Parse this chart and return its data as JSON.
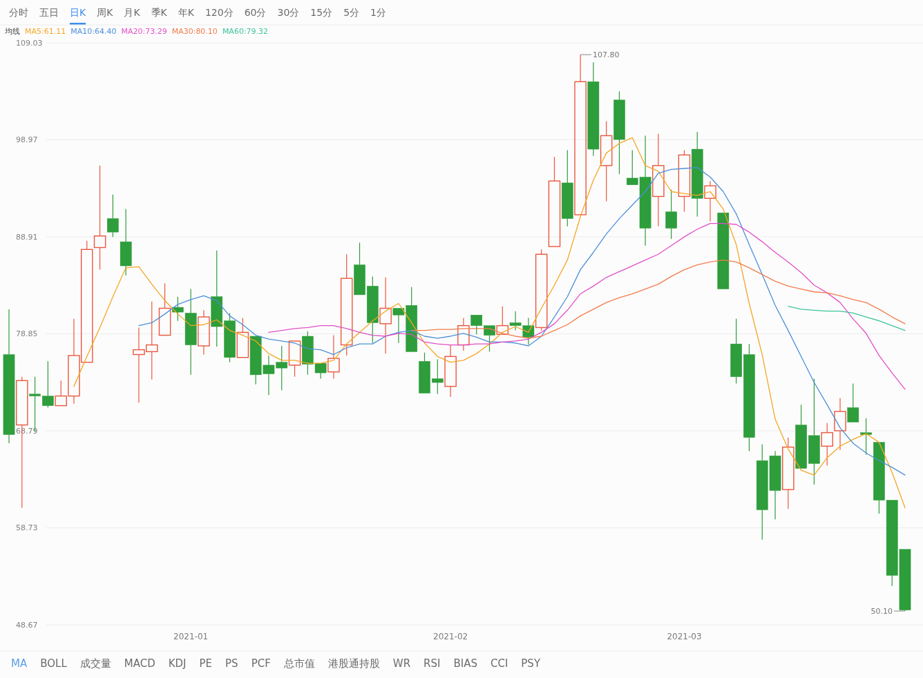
{
  "chart_data": [
    {
      "type": "other",
      "categories": [
        "分时",
        "五日",
        "日K",
        "周K",
        "月K",
        "季K",
        "年K",
        "120分",
        "60分",
        "30分",
        "15分",
        "5分",
        "1分"
      ],
      "colors": [
        "#6b6b6b",
        "#6b6b6b",
        "#3d8ee8",
        "#6b6b6b",
        "#6b6b6b",
        "#6b6b6b",
        "#6b6b6b",
        "#6b6b6b",
        "#6b6b6b",
        "#6b6b6b",
        "#6b6b6b",
        "#6b6b6b",
        "#6b6b6b"
      ],
      "color": "#3d8ee8"
    },
    {
      "type": "candlestick",
      "categories": [
        null,
        null,
        null,
        null,
        null,
        null,
        null,
        null,
        null,
        null,
        null,
        null,
        null,
        null,
        "2021-01",
        null,
        null,
        null,
        null,
        null,
        null,
        null,
        null,
        null,
        null,
        null,
        null,
        null,
        null,
        null,
        null,
        null,
        null,
        null,
        "2021-02",
        null,
        null,
        null,
        null,
        null,
        null,
        null,
        null,
        null,
        null,
        null,
        null,
        null,
        null,
        null,
        null,
        null,
        "2021-03",
        null,
        null,
        null,
        null,
        null,
        null,
        null,
        null,
        null,
        null,
        null,
        null,
        null,
        null,
        null,
        null,
        null
      ],
      "ohlc": [
        [
          76.7,
          81.4,
          67.5,
          68.4
        ],
        [
          69.4,
          74.4,
          60.8,
          74.0
        ],
        [
          72.6,
          74.4,
          68.7,
          72.4
        ],
        [
          72.4,
          76.0,
          71.2,
          71.4
        ],
        [
          71.4,
          74.0,
          71.4,
          72.4
        ],
        [
          72.4,
          80.4,
          71.6,
          76.6
        ],
        [
          75.9,
          88.5,
          75.9,
          87.6
        ],
        [
          87.8,
          96.3,
          85.5,
          89.0
        ],
        [
          90.8,
          93.3,
          88.9,
          89.4
        ],
        [
          88.4,
          91.8,
          84.9,
          85.9
        ],
        [
          76.7,
          79.5,
          71.7,
          77.2
        ],
        [
          77.0,
          82.2,
          74.1,
          77.7
        ],
        [
          78.7,
          84.1,
          78.7,
          81.5
        ],
        [
          81.6,
          82.7,
          80.2,
          81.1
        ],
        [
          81.0,
          83.5,
          74.6,
          77.7
        ],
        [
          77.6,
          81.3,
          76.7,
          80.6
        ],
        [
          82.7,
          87.5,
          77.5,
          79.6
        ],
        [
          80.2,
          81.0,
          75.9,
          76.4
        ],
        [
          76.4,
          80.5,
          76.4,
          79.0
        ],
        [
          78.6,
          78.6,
          73.6,
          74.6
        ],
        [
          75.6,
          76.6,
          72.5,
          74.7
        ],
        [
          75.9,
          77.6,
          73.0,
          75.3
        ],
        [
          75.6,
          78.1,
          74.4,
          78.1
        ],
        [
          78.6,
          79.1,
          74.6,
          75.7
        ],
        [
          75.8,
          75.8,
          74.2,
          74.8
        ],
        [
          74.9,
          78.7,
          74.2,
          76.3
        ],
        [
          77.7,
          87.1,
          76.6,
          84.6
        ],
        [
          86.0,
          88.3,
          82.9,
          82.9
        ],
        [
          83.8,
          84.8,
          77.9,
          80.0
        ],
        [
          79.9,
          84.7,
          76.8,
          81.5
        ],
        [
          81.5,
          81.5,
          77.9,
          80.8
        ],
        [
          81.8,
          83.7,
          77.0,
          77.0
        ],
        [
          76.0,
          76.9,
          72.7,
          72.7
        ],
        [
          74.2,
          76.2,
          72.6,
          73.8
        ],
        [
          73.4,
          77.7,
          72.3,
          76.5
        ],
        [
          77.7,
          80.5,
          77.1,
          79.7
        ],
        [
          80.8,
          80.8,
          78.8,
          79.7
        ],
        [
          79.7,
          79.7,
          77.0,
          78.7
        ],
        [
          78.8,
          81.7,
          78.8,
          79.7
        ],
        [
          80.0,
          81.2,
          79.2,
          79.7
        ],
        [
          79.7,
          80.5,
          77.7,
          78.5
        ],
        [
          79.5,
          87.6,
          79.2,
          87.1
        ],
        [
          87.9,
          97.2,
          87.9,
          94.7
        ],
        [
          94.5,
          97.9,
          90.0,
          90.8
        ],
        [
          91.2,
          107.8,
          91.2,
          105.0
        ],
        [
          105.0,
          107.0,
          97.3,
          98.0
        ],
        [
          96.3,
          100.9,
          92.6,
          99.4
        ],
        [
          103.1,
          104.0,
          95.4,
          99.0
        ],
        [
          95.0,
          97.9,
          94.3,
          94.3
        ],
        [
          95.1,
          99.4,
          88.0,
          89.8
        ],
        [
          93.1,
          99.6,
          90.0,
          96.3
        ],
        [
          91.5,
          93.8,
          88.7,
          89.8
        ],
        [
          93.1,
          97.9,
          91.5,
          97.4
        ],
        [
          98.0,
          99.8,
          91.0,
          92.9
        ],
        [
          92.9,
          94.7,
          90.5,
          94.2
        ],
        [
          91.4,
          91.4,
          83.5,
          83.5
        ],
        [
          77.8,
          80.4,
          73.7,
          74.4
        ],
        [
          76.7,
          77.8,
          66.7,
          68.1
        ],
        [
          65.7,
          67.4,
          57.5,
          60.6
        ],
        [
          66.2,
          66.7,
          59.6,
          62.6
        ],
        [
          62.7,
          68.1,
          60.7,
          67.1
        ],
        [
          69.4,
          71.5,
          64.9,
          64.9
        ],
        [
          68.3,
          74.2,
          63.2,
          65.4
        ],
        [
          67.2,
          69.6,
          65.2,
          68.6
        ],
        [
          68.8,
          72.2,
          66.8,
          70.8
        ],
        [
          71.2,
          73.7,
          69.7,
          69.7
        ],
        [
          68.6,
          70.1,
          66.3,
          68.4
        ],
        [
          67.6,
          67.6,
          60.2,
          61.6
        ],
        [
          61.6,
          61.6,
          52.7,
          53.8
        ],
        [
          56.5,
          56.5,
          50.1,
          50.2
        ]
      ],
      "colors": [
        "#2e9d3b",
        "#e9573d",
        "#2e9d3b",
        "#2e9d3b",
        "#e9573d",
        "#e9573d",
        "#e9573d",
        "#e9573d",
        "#2e9d3b",
        "#2e9d3b",
        "#e9573d",
        "#e9573d",
        "#e9573d",
        "#2e9d3b",
        "#2e9d3b",
        "#e9573d",
        "#2e9d3b",
        "#2e9d3b",
        "#e9573d",
        "#2e9d3b",
        "#2e9d3b",
        "#2e9d3b",
        "#e9573d",
        "#2e9d3b",
        "#2e9d3b",
        "#e9573d",
        "#e9573d",
        "#2e9d3b",
        "#2e9d3b",
        "#e9573d",
        "#2e9d3b",
        "#2e9d3b",
        "#2e9d3b",
        "#2e9d3b",
        "#e9573d",
        "#e9573d",
        "#2e9d3b",
        "#2e9d3b",
        "#e9573d",
        "#2e9d3b",
        "#2e9d3b",
        "#e9573d",
        "#e9573d",
        "#2e9d3b",
        "#e9573d",
        "#2e9d3b",
        "#e9573d",
        "#2e9d3b",
        "#2e9d3b",
        "#2e9d3b",
        "#e9573d",
        "#2e9d3b",
        "#e9573d",
        "#2e9d3b",
        "#e9573d",
        "#2e9d3b",
        "#2e9d3b",
        "#2e9d3b",
        "#2e9d3b",
        "#2e9d3b",
        "#e9573d",
        "#2e9d3b",
        "#2e9d3b",
        "#e9573d",
        "#e9573d",
        "#2e9d3b",
        "#2e9d3b",
        "#2e9d3b",
        "#2e9d3b",
        "#2e9d3b"
      ],
      "series": [
        {
          "name": "MA5:61.11",
          "type": "line",
          "color": "#f5a623",
          "values": [
            null,
            null,
            null,
            null,
            null,
            73.4,
            76.5,
            79.5,
            82.7,
            85.7,
            85.8,
            84.0,
            82.3,
            80.9,
            79.7,
            79.8,
            80.3,
            79.2,
            78.7,
            78.1,
            76.8,
            76.1,
            76.1,
            75.8,
            75.8,
            76.1,
            77.8,
            79.0,
            80.2,
            81.2,
            82.0,
            80.0,
            77.9,
            76.5,
            75.9,
            76.1,
            76.8,
            77.8,
            79.0,
            79.6,
            79.0,
            81.5,
            83.9,
            86.5,
            91.0,
            94.8,
            97.6,
            98.6,
            99.2,
            96.3,
            95.7,
            93.6,
            93.4,
            93.2,
            93.6,
            91.8,
            88.1,
            82.0,
            76.7,
            70.0,
            66.9,
            64.7,
            64.2,
            66.0,
            67.2,
            67.9,
            68.5,
            67.6,
            64.5,
            60.8
          ]
        },
        {
          "name": "MA10:64.40",
          "type": "line",
          "color": "#4a90d9",
          "values": [
            null,
            null,
            null,
            null,
            null,
            null,
            null,
            null,
            null,
            null,
            79.7,
            80.0,
            80.9,
            81.9,
            82.4,
            82.8,
            82.3,
            80.7,
            79.8,
            78.7,
            78.3,
            78.1,
            77.9,
            77.3,
            77.2,
            76.7,
            77.4,
            77.8,
            77.8,
            78.6,
            79.0,
            79.2,
            78.6,
            78.4,
            78.6,
            78.9,
            78.5,
            78.0,
            78.0,
            77.9,
            77.6,
            78.6,
            80.6,
            82.7,
            85.5,
            87.3,
            89.2,
            90.8,
            92.2,
            93.6,
            95.5,
            95.9,
            96.0,
            96.1,
            95.1,
            93.6,
            91.3,
            88.1,
            85.0,
            81.8,
            79.2,
            76.5,
            73.8,
            71.5,
            69.1,
            67.5,
            66.5,
            65.7,
            65.0,
            64.2
          ]
        },
        {
          "name": "MA20:73.29",
          "type": "line",
          "color": "#e24fc6",
          "values": [
            null,
            null,
            null,
            null,
            null,
            null,
            null,
            null,
            null,
            null,
            null,
            null,
            null,
            null,
            null,
            null,
            null,
            null,
            null,
            null,
            79.0,
            79.2,
            79.4,
            79.5,
            79.7,
            79.7,
            79.4,
            79.0,
            78.7,
            78.6,
            78.9,
            78.8,
            78.0,
            77.8,
            77.7,
            77.7,
            77.8,
            77.8,
            78.0,
            78.1,
            78.3,
            79.0,
            79.9,
            81.3,
            83.0,
            83.8,
            84.7,
            85.3,
            85.9,
            86.5,
            87.1,
            88.0,
            88.9,
            89.7,
            90.3,
            90.3,
            90.2,
            89.4,
            88.4,
            87.3,
            86.3,
            85.2,
            83.9,
            83.1,
            82.1,
            80.4,
            78.9,
            76.6,
            74.8,
            73.1
          ]
        },
        {
          "name": "MA30:80.10",
          "type": "line",
          "color": "#f27c4a",
          "values": [
            null,
            null,
            null,
            null,
            null,
            null,
            null,
            null,
            null,
            null,
            null,
            null,
            null,
            null,
            null,
            null,
            null,
            null,
            null,
            null,
            null,
            null,
            null,
            null,
            null,
            null,
            null,
            null,
            null,
            null,
            null,
            79.2,
            79.2,
            79.3,
            79.3,
            79.4,
            79.4,
            79.4,
            78.9,
            78.6,
            78.4,
            78.6,
            79.2,
            79.8,
            80.7,
            81.4,
            82.1,
            82.6,
            83.0,
            83.5,
            84.0,
            84.8,
            85.5,
            86.0,
            86.3,
            86.5,
            86.3,
            85.7,
            85.0,
            84.3,
            83.8,
            83.5,
            83.2,
            83.1,
            82.8,
            82.4,
            82.1,
            81.4,
            80.6,
            79.9
          ]
        },
        {
          "name": "MA60:79.32",
          "type": "line",
          "color": "#3cc49a",
          "values": [
            null,
            null,
            null,
            null,
            null,
            null,
            null,
            null,
            null,
            null,
            null,
            null,
            null,
            null,
            null,
            null,
            null,
            null,
            null,
            null,
            null,
            null,
            null,
            null,
            null,
            null,
            null,
            null,
            null,
            null,
            null,
            null,
            null,
            null,
            null,
            null,
            null,
            null,
            null,
            null,
            null,
            null,
            null,
            null,
            null,
            null,
            null,
            null,
            null,
            null,
            null,
            null,
            null,
            null,
            null,
            null,
            null,
            null,
            null,
            null,
            81.7,
            81.4,
            81.3,
            81.2,
            81.2,
            81.0,
            80.6,
            80.2,
            79.7,
            79.2
          ]
        }
      ],
      "ylim": [
        48.67,
        109.03
      ],
      "yticks": [
        48.67,
        58.73,
        68.79,
        78.85,
        88.91,
        98.97,
        109.03
      ],
      "grid": "y",
      "legend": "top left",
      "legend_title": "均线",
      "annotations": [
        "107.80",
        "50.10"
      ]
    },
    {
      "type": "other",
      "categories": [
        "MA",
        "BOLL",
        "成交量",
        "MACD",
        "KDJ",
        "PE",
        "PS",
        "PCF",
        "总市值",
        "港股通持股",
        "WR",
        "RSI",
        "BIAS",
        "CCI",
        "PSY"
      ],
      "colors": [
        "#5a9ee6",
        "#6b6b6b",
        "#6b6b6b",
        "#6b6b6b",
        "#6b6b6b",
        "#6b6b6b",
        "#6b6b6b",
        "#6b6b6b",
        "#6b6b6b",
        "#6b6b6b",
        "#6b6b6b",
        "#6b6b6b",
        "#6b6b6b",
        "#6b6b6b",
        "#6b6b6b"
      ]
    }
  ]
}
